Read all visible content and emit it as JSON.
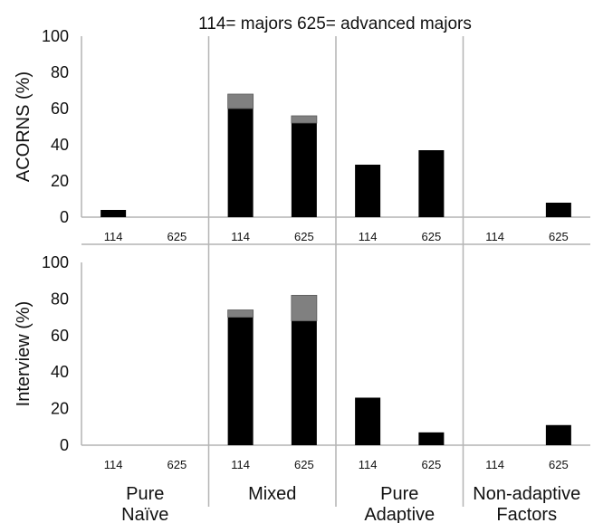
{
  "chart_data": {
    "type": "bar",
    "stacked": true,
    "title": "114= majors  625= advanced majors",
    "groups": [
      "Pure\nNaïve",
      "Mixed",
      "Pure\nAdaptive",
      "Non-adaptive\nFactors"
    ],
    "subcategories": [
      "114",
      "625"
    ],
    "ylim": [
      0,
      100
    ],
    "yticks": [
      0,
      20,
      40,
      60,
      80,
      100
    ],
    "grid": false,
    "legend": "none",
    "colors": {
      "black_segment": "#000000",
      "gray_segment": "#808080",
      "divider": "#b4b4b4"
    },
    "panels": [
      {
        "ylabel": "ACORNS (%)",
        "bars": [
          {
            "group": 0,
            "sub": "114",
            "black": 4,
            "gray": 0
          },
          {
            "group": 0,
            "sub": "625",
            "black": 0,
            "gray": 0
          },
          {
            "group": 1,
            "sub": "114",
            "black": 60,
            "gray": 8
          },
          {
            "group": 1,
            "sub": "625",
            "black": 52,
            "gray": 4
          },
          {
            "group": 2,
            "sub": "114",
            "black": 29,
            "gray": 0
          },
          {
            "group": 2,
            "sub": "625",
            "black": 37,
            "gray": 0
          },
          {
            "group": 3,
            "sub": "114",
            "black": 0,
            "gray": 0
          },
          {
            "group": 3,
            "sub": "625",
            "black": 8,
            "gray": 0
          }
        ]
      },
      {
        "ylabel": "Interview (%)",
        "bars": [
          {
            "group": 0,
            "sub": "114",
            "black": 0,
            "gray": 0
          },
          {
            "group": 0,
            "sub": "625",
            "black": 0,
            "gray": 0
          },
          {
            "group": 1,
            "sub": "114",
            "black": 70,
            "gray": 4
          },
          {
            "group": 1,
            "sub": "625",
            "black": 68,
            "gray": 14
          },
          {
            "group": 2,
            "sub": "114",
            "black": 26,
            "gray": 0
          },
          {
            "group": 2,
            "sub": "625",
            "black": 7,
            "gray": 0
          },
          {
            "group": 3,
            "sub": "114",
            "black": 0,
            "gray": 0
          },
          {
            "group": 3,
            "sub": "625",
            "black": 11,
            "gray": 0
          }
        ]
      }
    ]
  }
}
